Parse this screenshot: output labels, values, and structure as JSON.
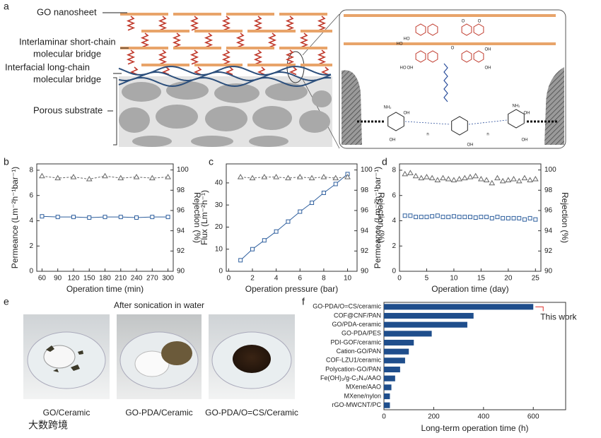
{
  "panel_labels": [
    "a",
    "b",
    "c",
    "d",
    "e",
    "f"
  ],
  "schematic": {
    "labels": [
      "GO nanosheet",
      "Interlaminar short-chain",
      "molecular bridge",
      "Interfacial long-chain",
      "molecular bridge",
      "Porous substrate"
    ],
    "chem_labels": [
      "O",
      "O",
      "HO",
      "HO",
      "O",
      "OH",
      "OH",
      "HO",
      "OH",
      "NH₂",
      "OH",
      "n",
      "n",
      "NH₂",
      "OH",
      "OH",
      "OH",
      "OH"
    ]
  },
  "photos": {
    "title": "After sonication in water",
    "captions": [
      "GO/Ceramic",
      "GO-PDA/Ceramic",
      "GO-PDA/O=CS/Ceramic"
    ]
  },
  "watermark": "大数跨境",
  "chart_data": [
    {
      "type": "line",
      "xlabel": "Operation time (min)",
      "ylabel": "Permeance (Lm⁻²h⁻¹bar⁻¹)",
      "y2label": "Rejection (%)",
      "x": [
        60,
        90,
        120,
        150,
        180,
        210,
        240,
        270,
        300
      ],
      "series": [
        {
          "color": "#2e5f9e",
          "marker": "square",
          "linestyle": "solid",
          "values": [
            4.35,
            4.3,
            4.3,
            4.25,
            4.3,
            4.3,
            4.25,
            4.3,
            4.3
          ]
        },
        {
          "color": "#666666",
          "marker": "triangle",
          "linestyle": "dashed",
          "axis": "y2",
          "values": [
            99.4,
            99.2,
            99.3,
            99.1,
            99.4,
            99.2,
            99.3,
            99.2,
            99.3
          ]
        }
      ],
      "xlim": [
        50,
        310
      ],
      "xticks": [
        60,
        90,
        120,
        150,
        180,
        210,
        240,
        270,
        300
      ],
      "ylim": [
        0,
        8.5
      ],
      "yticks": [
        0,
        2,
        4,
        6,
        8
      ],
      "y2lim": [
        90,
        100.6
      ],
      "y2ticks": [
        90,
        92,
        94,
        96,
        98,
        100
      ]
    },
    {
      "type": "line",
      "xlabel": "Operation pressure (bar)",
      "ylabel": "Flux (Lm⁻²h⁻¹)",
      "y2label": "Rejection (%)",
      "x": [
        1,
        2,
        3,
        4,
        5,
        6,
        7,
        8,
        9,
        10
      ],
      "series": [
        {
          "color": "#2e5f9e",
          "marker": "square",
          "linestyle": "solid",
          "values": [
            5,
            10,
            14,
            18,
            22.5,
            27,
            31,
            35.5,
            39.5,
            44
          ]
        },
        {
          "color": "#666666",
          "marker": "triangle",
          "linestyle": "dashed",
          "axis": "y2",
          "values": [
            99.3,
            99.2,
            99.3,
            99.3,
            99.2,
            99.3,
            99.2,
            99.3,
            99.2,
            99.3
          ]
        }
      ],
      "xlim": [
        -0.2,
        10.8
      ],
      "xticks": [
        0,
        2,
        4,
        6,
        8,
        10
      ],
      "ylim": [
        0,
        48.6
      ],
      "yticks": [
        0,
        10,
        20,
        30,
        40
      ],
      "y2lim": [
        90,
        100.6
      ],
      "y2ticks": [
        90,
        92,
        94,
        96,
        98,
        100
      ]
    },
    {
      "type": "line",
      "xlabel": "Operation time (day)",
      "ylabel": "Permeance (Lm⁻²h⁻¹bar⁻¹)",
      "y2label": "Rejection (%)",
      "x": [
        1,
        2,
        3,
        4,
        5,
        6,
        7,
        8,
        9,
        10,
        11,
        12,
        13,
        14,
        15,
        16,
        17,
        18,
        19,
        20,
        21,
        22,
        23,
        24,
        25
      ],
      "series": [
        {
          "color": "#2e5f9e",
          "marker": "square",
          "linestyle": "none",
          "values": [
            4.4,
            4.4,
            4.3,
            4.3,
            4.3,
            4.35,
            4.4,
            4.3,
            4.3,
            4.35,
            4.3,
            4.3,
            4.3,
            4.25,
            4.3,
            4.3,
            4.2,
            4.3,
            4.2,
            4.2,
            4.2,
            4.2,
            4.1,
            4.2,
            4.1
          ]
        },
        {
          "color": "#666666",
          "marker": "triangle",
          "linestyle": "none",
          "axis": "y2",
          "values": [
            99.6,
            99.7,
            99.4,
            99.2,
            99.3,
            99.2,
            99.0,
            99.2,
            99.1,
            99.0,
            99.1,
            99.2,
            99.3,
            99.4,
            99.1,
            99.0,
            98.7,
            99.2,
            98.9,
            99.0,
            99.1,
            98.9,
            99.2,
            99.0,
            99.1
          ]
        }
      ],
      "xlim": [
        0,
        26
      ],
      "xticks": [
        0,
        5,
        10,
        15,
        20,
        25
      ],
      "ylim": [
        0,
        8.5
      ],
      "yticks": [
        0,
        2,
        4,
        6,
        8
      ],
      "y2lim": [
        90,
        100.6
      ],
      "y2ticks": [
        90,
        92,
        94,
        96,
        98,
        100
      ]
    },
    {
      "type": "barh",
      "xlabel": "Long-term operation time (h)",
      "annotation": "This work",
      "annotation_color": "#e0312b",
      "color": "#1f4e8c",
      "categories": [
        "GO-PDA/O=CS/ceramic",
        "COF@CNF/PAN",
        "GO/PDA-ceramic",
        "GO-PDA/PES",
        "PDI-GOF/ceramic",
        "Cation-GO/PAN",
        "COF-LZU1/ceramic",
        "Polycation-GO/PAN",
        "Fe(OH)₃/g-C₃N₄/AAO",
        "MXene/AAO",
        "MXene/nylon",
        "rGO-MWCNT/PC"
      ],
      "values": [
        600,
        360,
        335,
        192,
        120,
        100,
        85,
        65,
        45,
        30,
        24,
        24
      ],
      "xlim": [
        0,
        730
      ],
      "xticks": [
        0,
        200,
        400,
        600
      ]
    }
  ]
}
